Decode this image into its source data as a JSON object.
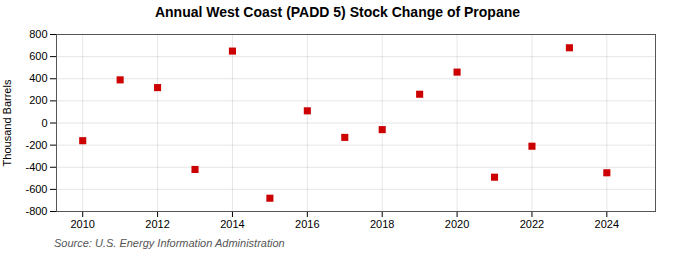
{
  "chart_data": {
    "type": "scatter",
    "title": "Annual West Coast (PADD 5) Stock Change of Propane",
    "ylabel": "Thousand Barrels",
    "source": "Source: U.S. Energy Information Administration",
    "x": [
      2010,
      2011,
      2012,
      2013,
      2014,
      2015,
      2016,
      2017,
      2018,
      2019,
      2020,
      2021,
      2022,
      2023,
      2024
    ],
    "values": [
      -160,
      390,
      320,
      -420,
      650,
      -680,
      110,
      -130,
      -60,
      260,
      460,
      -490,
      -210,
      680,
      -450
    ],
    "color": "#cc0000",
    "marker": "square",
    "xlim": [
      2009.3,
      2025.3
    ],
    "ylim": [
      -800,
      800
    ],
    "xticks": [
      2010,
      2012,
      2014,
      2016,
      2018,
      2020,
      2022,
      2024
    ],
    "yticks": [
      -800,
      -600,
      -400,
      -200,
      0,
      200,
      400,
      600,
      800
    ],
    "grid": true
  }
}
